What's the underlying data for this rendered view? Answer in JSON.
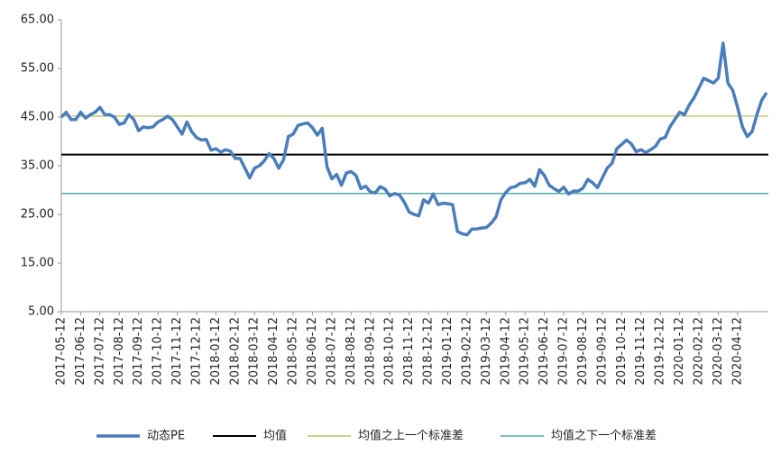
{
  "chart_data": {
    "type": "line",
    "categories": [
      "2017-05-12",
      null,
      null,
      null,
      "2017-06-12",
      null,
      null,
      null,
      "2017-07-12",
      null,
      null,
      null,
      "2017-08-12",
      null,
      null,
      null,
      "2017-09-12",
      null,
      null,
      null,
      "2017-10-12",
      null,
      null,
      null,
      "2017-11-12",
      null,
      null,
      null,
      "2017-12-12",
      null,
      null,
      null,
      "2018-01-12",
      null,
      null,
      null,
      "2018-02-12",
      null,
      null,
      null,
      "2018-03-12",
      null,
      null,
      null,
      "2018-04-12",
      null,
      null,
      null,
      "2018-05-12",
      null,
      null,
      null,
      "2018-06-12",
      null,
      null,
      null,
      "2018-07-12",
      null,
      null,
      null,
      "2018-08-12",
      null,
      null,
      null,
      "2018-09-12",
      null,
      null,
      null,
      "2018-10-12",
      null,
      null,
      null,
      "2018-11-12",
      null,
      null,
      null,
      "2018-12-12",
      null,
      null,
      null,
      "2019-01-12",
      null,
      null,
      null,
      "2019-02-12",
      null,
      null,
      null,
      "2019-03-12",
      null,
      null,
      null,
      "2019-04-12",
      null,
      null,
      null,
      "2019-05-12",
      null,
      null,
      null,
      "2019-06-12",
      null,
      null,
      null,
      "2019-07-12",
      null,
      null,
      null,
      "2019-08-12",
      null,
      null,
      null,
      "2019-09-12",
      null,
      null,
      null,
      "2019-10-12",
      null,
      null,
      null,
      "2019-11-12",
      null,
      null,
      null,
      "2019-12-12",
      null,
      null,
      null,
      "2020-01-12",
      null,
      null,
      null,
      "2020-02-12",
      null,
      null,
      null,
      "2020-03-12",
      null,
      null,
      null,
      "2020-04-12",
      null,
      null,
      null,
      null,
      null,
      null
    ],
    "series": [
      {
        "name": "动态PE",
        "color": "#4a7ebb",
        "values": [
          45,
          46,
          44.5,
          44.5,
          46,
          44.8,
          45.5,
          46,
          47,
          45.5,
          45.5,
          45,
          43.5,
          43.8,
          45.5,
          44.5,
          42.2,
          43,
          42.8,
          43,
          44,
          44.5,
          45.2,
          44.5,
          43,
          41.5,
          44,
          42,
          40.8,
          40.3,
          40.4,
          38.2,
          38.5,
          37.8,
          38.3,
          38,
          36.5,
          36.5,
          34.5,
          32.5,
          34.5,
          35,
          36,
          37.5,
          36.5,
          34.5,
          36.2,
          41,
          41.5,
          43.3,
          43.6,
          43.8,
          42.8,
          41.3,
          42.7,
          34.8,
          32.3,
          33.2,
          31,
          33.5,
          33.8,
          33,
          30.3,
          30.8,
          29.6,
          29.4,
          30.7,
          30.2,
          28.8,
          29.3,
          29,
          27.5,
          25.5,
          25,
          24.7,
          28,
          27.3,
          29.2,
          27,
          27.3,
          27.2,
          27,
          21.5,
          21,
          20.8,
          22,
          22,
          22.2,
          22.3,
          23.2,
          24.5,
          28,
          29.5,
          30.5,
          30.7,
          31.4,
          31.5,
          32.2,
          30.8,
          34.2,
          33,
          31,
          30.3,
          29.7,
          30.6,
          29.2,
          29.8,
          29.8,
          30.4,
          32.2,
          31.5,
          30.5,
          32.5,
          34.5,
          35.5,
          38.5,
          39.4,
          40.3,
          39.5,
          37.9,
          38.3,
          37.7,
          38.3,
          39,
          40.5,
          40.8,
          43,
          44.5,
          46,
          45.5,
          47.5,
          49,
          51,
          53,
          52.5,
          52,
          53,
          60.2,
          52,
          50.5,
          47,
          43,
          41,
          42,
          45.5,
          48.5,
          50
        ]
      }
    ],
    "reference_lines": [
      {
        "name": "均值",
        "color": "#000000",
        "value": 37.3
      },
      {
        "name": "均值之上一个标准差",
        "color": "#a9b94c",
        "value": 45.2
      },
      {
        "name": "均值之下一个标准差",
        "color": "#2f9e8f",
        "value": 29.3
      }
    ],
    "ylim": [
      5,
      65
    ],
    "yticks": [
      {
        "value": 5,
        "label": "5.00"
      },
      {
        "value": 15,
        "label": "15.00"
      },
      {
        "value": 25,
        "label": "25.00"
      },
      {
        "value": 35,
        "label": "35.00"
      },
      {
        "value": 45,
        "label": "45.00"
      },
      {
        "value": 55,
        "label": "55.00"
      },
      {
        "value": 65,
        "label": "65.00"
      }
    ],
    "grid": false
  }
}
